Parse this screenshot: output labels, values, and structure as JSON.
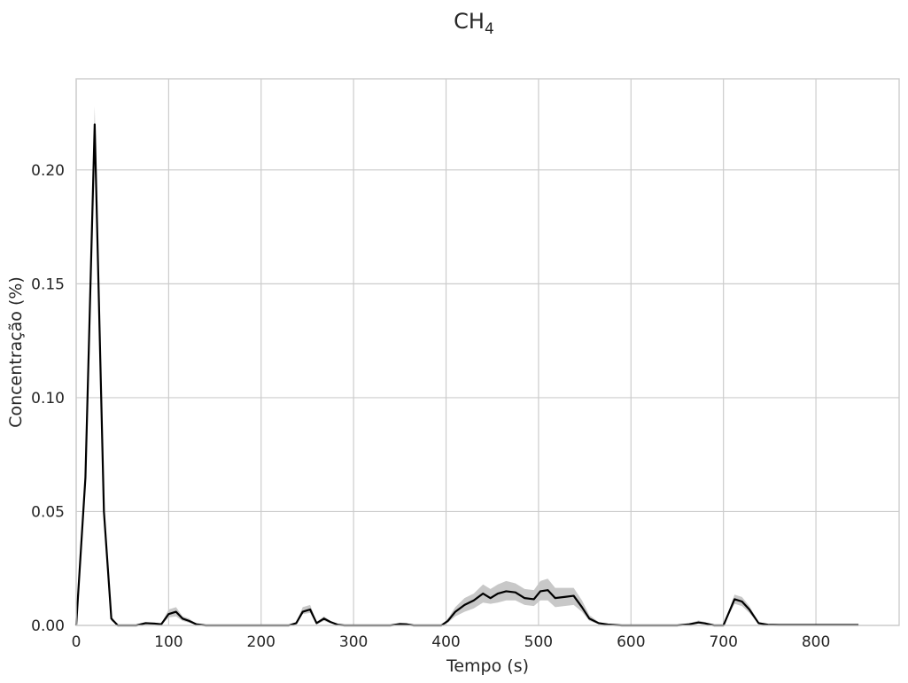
{
  "chart_data": {
    "type": "line",
    "title": "CH",
    "title_subscript": "4",
    "xlabel": "Tempo (s)",
    "ylabel": "Concentração (%)",
    "xlim": [
      0,
      890
    ],
    "ylim": [
      0,
      0.24
    ],
    "xticks": [
      0,
      100,
      200,
      300,
      400,
      500,
      600,
      700,
      800
    ],
    "xtick_labels": [
      "0",
      "100",
      "200",
      "300",
      "400",
      "500",
      "600",
      "700",
      "800"
    ],
    "yticks": [
      0,
      0.05,
      0.1,
      0.15,
      0.2
    ],
    "ytick_labels": [
      "0.00",
      "0.05",
      "0.10",
      "0.15",
      "0.20"
    ],
    "grid": true,
    "line_color": "#000000",
    "band_color": "#c8c8c8",
    "series": [
      {
        "x": [
          0,
          10,
          20,
          30,
          38,
          45,
          55,
          65,
          75,
          85,
          92,
          100,
          108,
          115,
          122,
          130,
          140,
          150,
          160,
          170,
          180,
          190,
          200,
          210,
          220,
          230,
          238,
          245,
          253,
          260,
          268,
          275,
          283,
          290,
          300,
          310,
          320,
          330,
          340,
          350,
          357,
          365,
          375,
          385,
          395,
          402,
          410,
          420,
          430,
          440,
          448,
          456,
          465,
          475,
          485,
          495,
          502,
          510,
          518,
          528,
          538,
          547,
          555,
          565,
          575,
          590,
          610,
          630,
          650,
          663,
          673,
          680,
          690,
          700,
          712,
          720,
          728,
          738,
          748,
          760,
          800,
          846
        ],
        "y": [
          0.0,
          0.065,
          0.22,
          0.05,
          0.003,
          0.0,
          0.0,
          0.0,
          0.001,
          0.0008,
          0.0005,
          0.005,
          0.006,
          0.003,
          0.002,
          0.0005,
          0.0,
          0.0,
          0.0,
          0.0,
          0.0,
          0.0,
          0.0,
          0.0,
          0.0,
          0.0,
          0.001,
          0.006,
          0.007,
          0.001,
          0.003,
          0.0015,
          0.0003,
          0.0,
          0.0,
          0.0,
          0.0,
          0.0,
          0.0,
          0.0006,
          0.0005,
          0.0,
          0.0,
          0.0,
          0.0,
          0.002,
          0.006,
          0.009,
          0.011,
          0.014,
          0.012,
          0.014,
          0.015,
          0.0145,
          0.012,
          0.0115,
          0.015,
          0.0155,
          0.012,
          0.0125,
          0.013,
          0.008,
          0.003,
          0.001,
          0.0004,
          0.0,
          0.0,
          0.0,
          0.0,
          0.0005,
          0.0013,
          0.0009,
          0.0,
          0.0,
          0.0115,
          0.0105,
          0.007,
          0.001,
          0.0003,
          0.0002,
          0.0002,
          0.0002
        ],
        "lower": [
          0.0,
          0.063,
          0.212,
          0.048,
          0.002,
          0.0,
          0.0,
          0.0,
          0.0005,
          0.0004,
          0.0002,
          0.0035,
          0.004,
          0.002,
          0.0012,
          0.0002,
          0.0,
          0.0,
          0.0,
          0.0,
          0.0,
          0.0,
          0.0,
          0.0,
          0.0,
          0.0,
          0.0005,
          0.005,
          0.0055,
          0.0006,
          0.002,
          0.001,
          0.0001,
          0.0,
          0.0,
          0.0,
          0.0,
          0.0,
          0.0,
          0.0003,
          0.0002,
          0.0,
          0.0,
          0.0,
          0.0,
          0.0012,
          0.004,
          0.006,
          0.0075,
          0.01,
          0.0095,
          0.01,
          0.011,
          0.011,
          0.009,
          0.0085,
          0.011,
          0.011,
          0.008,
          0.0085,
          0.009,
          0.006,
          0.002,
          0.0006,
          0.0002,
          0.0,
          0.0,
          0.0,
          0.0,
          0.0002,
          0.0008,
          0.0005,
          0.0,
          0.0,
          0.0095,
          0.0085,
          0.0055,
          0.0006,
          0.0001,
          0.0001,
          0.0001,
          0.0001
        ],
        "upper": [
          0.0,
          0.067,
          0.228,
          0.052,
          0.004,
          0.0,
          0.0,
          0.0,
          0.0015,
          0.0012,
          0.0008,
          0.007,
          0.008,
          0.004,
          0.003,
          0.0008,
          0.0,
          0.0,
          0.0,
          0.0,
          0.0,
          0.0,
          0.0,
          0.0,
          0.0,
          0.0,
          0.0015,
          0.008,
          0.009,
          0.0015,
          0.004,
          0.002,
          0.0005,
          0.0,
          0.0,
          0.0,
          0.0,
          0.0,
          0.0,
          0.0012,
          0.001,
          0.0,
          0.0,
          0.0,
          0.0,
          0.003,
          0.008,
          0.012,
          0.014,
          0.018,
          0.016,
          0.018,
          0.0195,
          0.0185,
          0.016,
          0.0155,
          0.0195,
          0.0205,
          0.0165,
          0.0165,
          0.0165,
          0.011,
          0.0045,
          0.0015,
          0.0006,
          0.0,
          0.0,
          0.0,
          0.0,
          0.0009,
          0.0022,
          0.0015,
          0.0,
          0.0,
          0.0135,
          0.0125,
          0.0085,
          0.0015,
          0.0005,
          0.0003,
          0.0003,
          0.0003
        ]
      }
    ]
  }
}
